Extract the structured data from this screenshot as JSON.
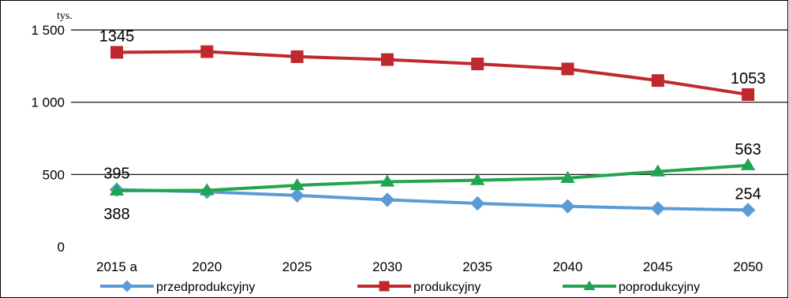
{
  "chart_data": {
    "type": "line",
    "unit_label": "tys.",
    "categories": [
      "2015 a",
      "2020",
      "2025",
      "2030",
      "2035",
      "2040",
      "2045",
      "2050"
    ],
    "ylim": [
      0,
      1500
    ],
    "yticks": [
      0,
      500,
      1000,
      1500
    ],
    "ytick_labels": [
      "0",
      "500",
      "1 000",
      "1 500"
    ],
    "grid": "horizontal",
    "legend_position": "bottom",
    "series": [
      {
        "name": "przedprodukcyjny",
        "color": "#5B9BD5",
        "marker": "diamond",
        "values": [
          395,
          380,
          355,
          325,
          300,
          280,
          265,
          254
        ]
      },
      {
        "name": "produkcyjny",
        "color": "#C0282D",
        "marker": "square",
        "values": [
          1345,
          1350,
          1315,
          1295,
          1265,
          1230,
          1150,
          1053
        ]
      },
      {
        "name": "poprodukcyjny",
        "color": "#21A550",
        "marker": "triangle",
        "values": [
          388,
          390,
          425,
          450,
          460,
          475,
          520,
          563
        ]
      }
    ],
    "data_labels": [
      {
        "series": 1,
        "index": 0,
        "text": "1345",
        "pos": "above"
      },
      {
        "series": 1,
        "index": 7,
        "text": "1053",
        "pos": "above"
      },
      {
        "series": 0,
        "index": 0,
        "text": "395",
        "pos": "above"
      },
      {
        "series": 2,
        "index": 0,
        "text": "388",
        "pos": "below"
      },
      {
        "series": 2,
        "index": 7,
        "text": "563",
        "pos": "above"
      },
      {
        "series": 0,
        "index": 7,
        "text": "254",
        "pos": "above"
      }
    ]
  }
}
